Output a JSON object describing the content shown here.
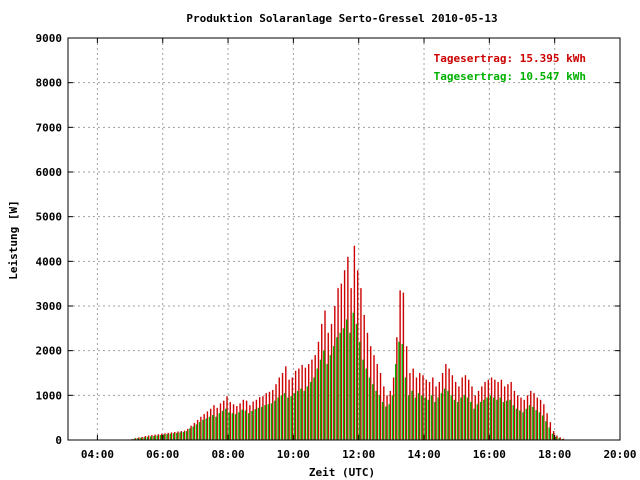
{
  "chart_data": {
    "type": "bar",
    "title": "Produktion Solaranlage Serto-Gressel 2010-05-13",
    "xlabel": "Zeit (UTC)",
    "ylabel": "Leistung [W]",
    "ylim": [
      0,
      9000
    ],
    "xlim_hours": [
      3.1,
      20.0
    ],
    "y_ticks": [
      "0",
      "1000",
      "2000",
      "3000",
      "4000",
      "5000",
      "6000",
      "7000",
      "8000",
      "9000"
    ],
    "x_ticks": [
      "04:00",
      "06:00",
      "08:00",
      "10:00",
      "12:00",
      "14:00",
      "16:00",
      "18:00",
      "20:00"
    ],
    "x_tick_hours": [
      4,
      6,
      8,
      10,
      12,
      14,
      16,
      18,
      20
    ],
    "grid": true,
    "legend_position": "top-right",
    "legend": [
      {
        "text": "Tagesertrag: 15.395 kWh",
        "color": "#cc0000"
      },
      {
        "text": "Tagesertrag: 10.547 kWh",
        "color": "#00b000"
      }
    ],
    "x_hours": [
      5.05,
      5.15,
      5.25,
      5.35,
      5.45,
      5.55,
      5.65,
      5.75,
      5.85,
      5.95,
      6.05,
      6.15,
      6.25,
      6.35,
      6.45,
      6.55,
      6.65,
      6.75,
      6.85,
      6.95,
      7.05,
      7.15,
      7.25,
      7.35,
      7.45,
      7.55,
      7.65,
      7.75,
      7.85,
      7.95,
      8.05,
      8.15,
      8.25,
      8.35,
      8.45,
      8.55,
      8.65,
      8.75,
      8.85,
      8.95,
      9.05,
      9.15,
      9.25,
      9.35,
      9.45,
      9.55,
      9.65,
      9.75,
      9.85,
      9.95,
      10.05,
      10.15,
      10.25,
      10.35,
      10.45,
      10.55,
      10.65,
      10.75,
      10.85,
      10.95,
      11.05,
      11.15,
      11.25,
      11.35,
      11.45,
      11.55,
      11.65,
      11.75,
      11.85,
      11.95,
      12.05,
      12.15,
      12.25,
      12.35,
      12.45,
      12.55,
      12.65,
      12.75,
      12.85,
      12.95,
      13.05,
      13.15,
      13.25,
      13.35,
      13.45,
      13.55,
      13.65,
      13.75,
      13.85,
      13.95,
      14.05,
      14.15,
      14.25,
      14.35,
      14.45,
      14.55,
      14.65,
      14.75,
      14.85,
      14.95,
      15.05,
      15.15,
      15.25,
      15.35,
      15.45,
      15.55,
      15.65,
      15.75,
      15.85,
      15.95,
      16.05,
      16.15,
      16.25,
      16.35,
      16.45,
      16.55,
      16.65,
      16.75,
      16.85,
      16.95,
      17.05,
      17.15,
      17.25,
      17.35,
      17.45,
      17.55,
      17.65,
      17.75,
      17.85,
      17.95,
      18.05,
      18.15,
      18.25
    ],
    "series": [
      {
        "name": "Tagesertrag: 15.395 kWh",
        "color": "#cc0000",
        "values": [
          20,
          40,
          60,
          70,
          90,
          100,
          110,
          120,
          130,
          140,
          150,
          160,
          170,
          180,
          190,
          200,
          210,
          250,
          320,
          380,
          450,
          520,
          580,
          640,
          700,
          780,
          720,
          820,
          880,
          980,
          850,
          800,
          760,
          820,
          900,
          880,
          780,
          860,
          900,
          960,
          980,
          1050,
          1080,
          1120,
          1250,
          1400,
          1500,
          1650,
          1350,
          1400,
          1550,
          1600,
          1680,
          1620,
          1700,
          1800,
          1900,
          2200,
          2600,
          2900,
          2400,
          2600,
          3000,
          3400,
          3500,
          3800,
          4100,
          3400,
          4350,
          3800,
          3400,
          2800,
          2400,
          2100,
          1900,
          1700,
          1500,
          1200,
          1000,
          1100,
          1400,
          2300,
          3350,
          3300,
          2100,
          1500,
          1600,
          1400,
          1500,
          1450,
          1350,
          1300,
          1400,
          1200,
          1300,
          1500,
          1700,
          1600,
          1450,
          1300,
          1200,
          1400,
          1450,
          1350,
          1200,
          1000,
          1100,
          1200,
          1300,
          1350,
          1400,
          1350,
          1300,
          1350,
          1200,
          1250,
          1300,
          1100,
          1000,
          950,
          900,
          1000,
          1100,
          1050,
          950,
          900,
          800,
          600,
          400,
          200,
          100,
          60,
          30
        ]
      },
      {
        "name": "Tagesertrag: 10.547 kWh",
        "color": "#00b000",
        "values": [
          10,
          30,
          40,
          50,
          60,
          70,
          80,
          90,
          100,
          110,
          120,
          130,
          140,
          150,
          160,
          170,
          180,
          200,
          260,
          300,
          350,
          400,
          450,
          480,
          520,
          560,
          520,
          600,
          650,
          700,
          620,
          600,
          580,
          620,
          680,
          660,
          600,
          650,
          690,
          720,
          740,
          780,
          800,
          820,
          880,
          950,
          1000,
          1050,
          950,
          980,
          1050,
          1100,
          1150,
          1100,
          1200,
          1300,
          1400,
          1600,
          1800,
          2000,
          1700,
          1900,
          2100,
          2300,
          2400,
          2500,
          2700,
          2400,
          2850,
          2600,
          2200,
          1800,
          1600,
          1400,
          1250,
          1100,
          1000,
          850,
          750,
          800,
          1000,
          1700,
          2200,
          2150,
          1400,
          1000,
          1100,
          950,
          1050,
          1000,
          950,
          900,
          1000,
          850,
          950,
          1050,
          1150,
          1100,
          1000,
          900,
          850,
          950,
          1000,
          950,
          850,
          700,
          800,
          850,
          900,
          950,
          1000,
          950,
          900,
          950,
          850,
          880,
          900,
          780,
          700,
          660,
          620,
          700,
          780,
          740,
          670,
          620,
          550,
          420,
          280,
          140,
          70,
          40,
          20
        ]
      }
    ]
  }
}
